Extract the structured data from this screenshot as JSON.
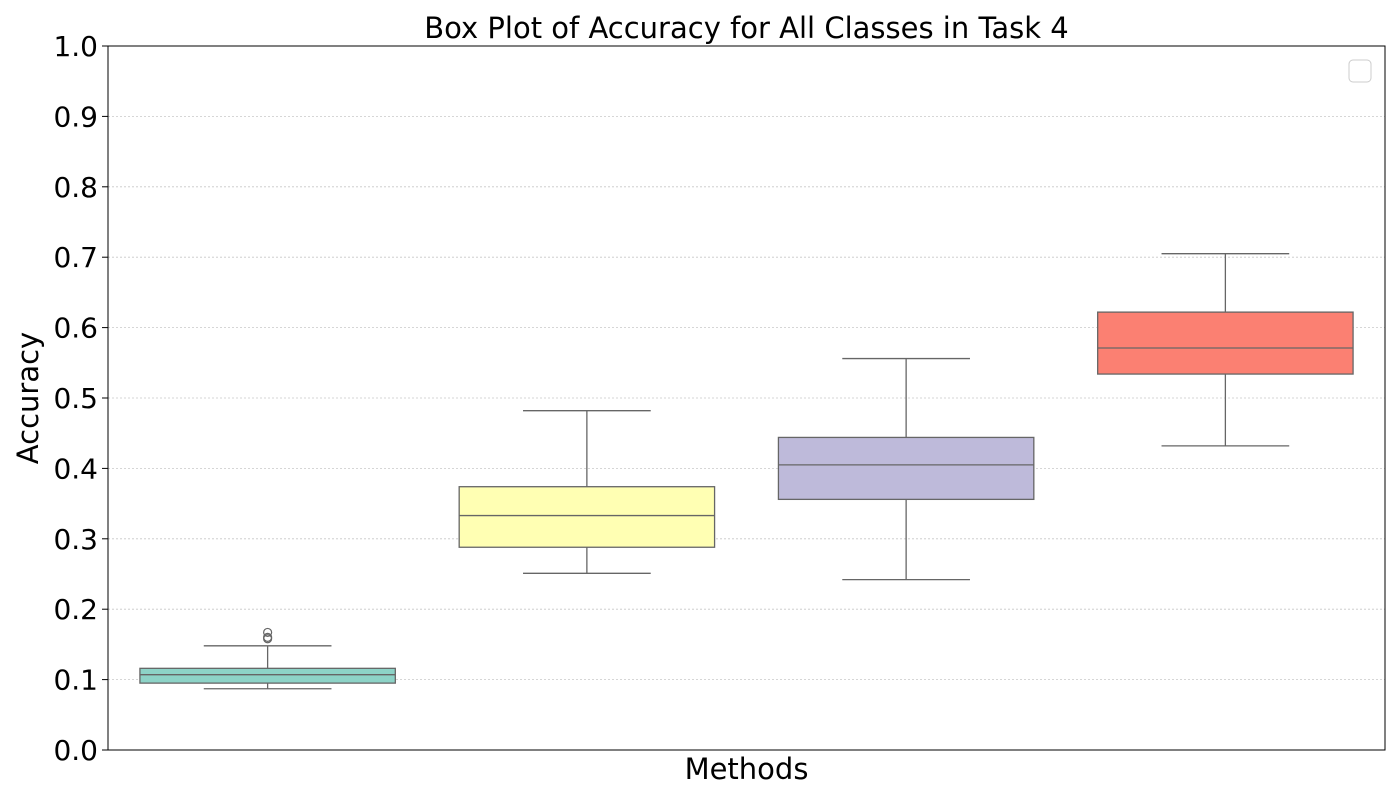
{
  "chart_data": {
    "type": "box",
    "title": "Box Plot of Accuracy for All Classes in Task 4",
    "xlabel": "Methods",
    "ylabel": "Accuracy",
    "ylim": [
      0.0,
      1.0
    ],
    "yticks": [
      0.0,
      0.1,
      0.2,
      0.3,
      0.4,
      0.5,
      0.6,
      0.7,
      0.8,
      0.9,
      1.0
    ],
    "ytick_labels": [
      "0.0",
      "0.1",
      "0.2",
      "0.3",
      "0.4",
      "0.5",
      "0.6",
      "0.7",
      "0.8",
      "0.9",
      "1.0"
    ],
    "grid": "horizontal dotted",
    "legend": "top-right, empty",
    "series": [
      {
        "color": "#8dd3c7",
        "whisker_low": 0.087,
        "q1": 0.095,
        "median": 0.107,
        "q3": 0.116,
        "whisker_high": 0.148,
        "outliers": [
          0.158,
          0.16,
          0.167
        ]
      },
      {
        "color": "#ffffb3",
        "whisker_low": 0.251,
        "q1": 0.288,
        "median": 0.333,
        "q3": 0.374,
        "whisker_high": 0.482,
        "outliers": []
      },
      {
        "color": "#bebada",
        "whisker_low": 0.242,
        "q1": 0.356,
        "median": 0.405,
        "q3": 0.444,
        "whisker_high": 0.556,
        "outliers": []
      },
      {
        "color": "#fb8072",
        "whisker_low": 0.432,
        "q1": 0.534,
        "median": 0.571,
        "q3": 0.622,
        "whisker_high": 0.705,
        "outliers": []
      }
    ]
  }
}
